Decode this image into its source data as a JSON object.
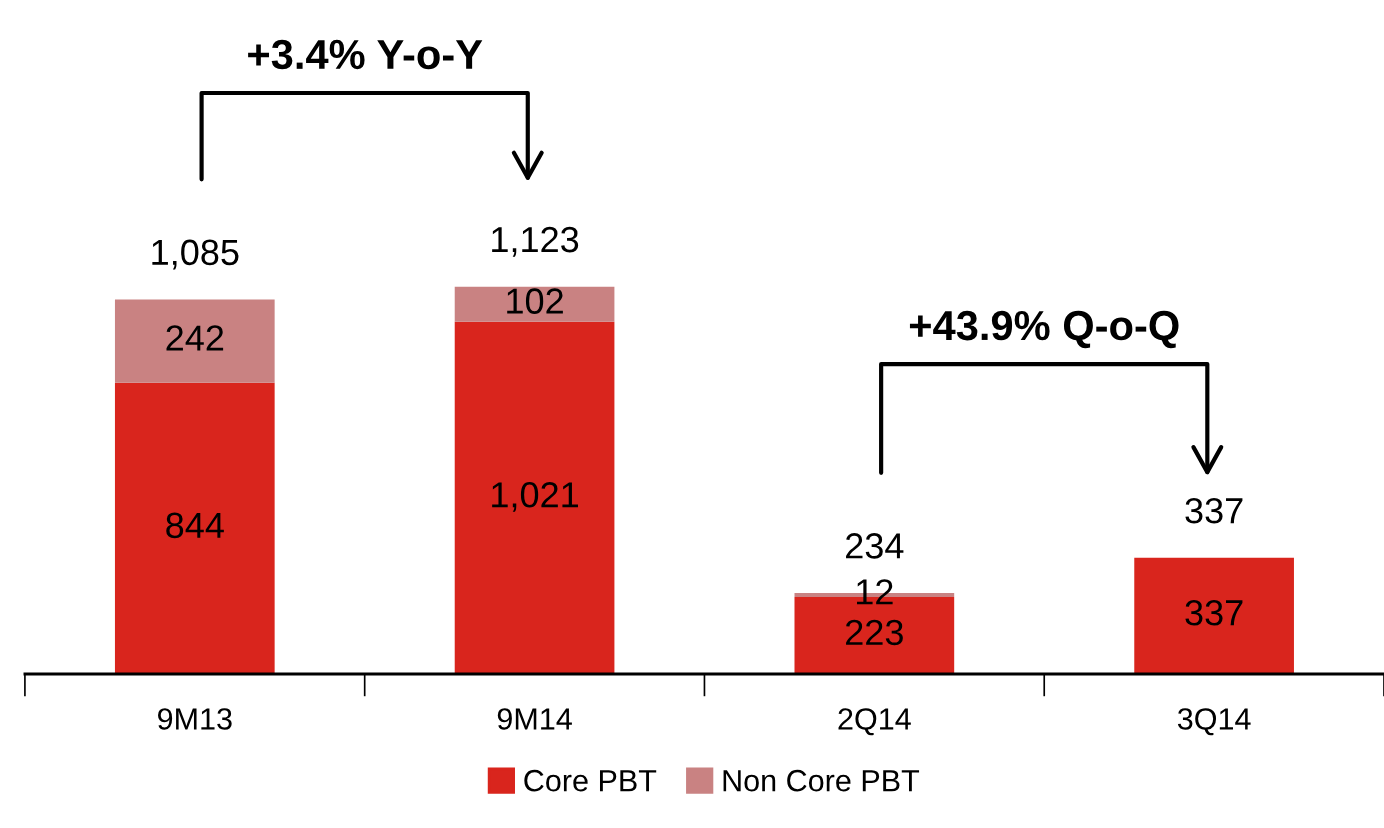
{
  "chart_data": {
    "type": "bar",
    "stacked": true,
    "categories": [
      "9M13",
      "9M14",
      "2Q14",
      "3Q14"
    ],
    "series": [
      {
        "name": "Core PBT",
        "color": "#d9251d",
        "values": [
          844,
          1021,
          223,
          337
        ],
        "value_labels": [
          "844",
          "1,021",
          "223",
          "337"
        ]
      },
      {
        "name": "Non Core PBT",
        "color": "#c98282",
        "values": [
          242,
          102,
          12,
          null
        ],
        "value_labels": [
          "242",
          "102",
          "12",
          null
        ]
      }
    ],
    "totals": [
      "1,085",
      "1,123",
      "234",
      "337"
    ],
    "annotations": [
      "+3.4% Y-o-Y",
      "+43.9% Q-o-Q"
    ],
    "legend": "bottom",
    "grid": false
  }
}
